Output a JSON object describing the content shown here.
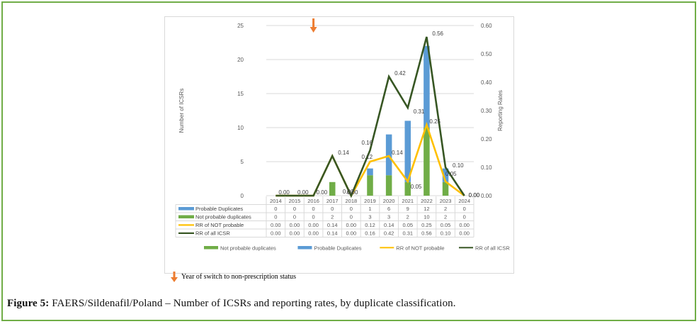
{
  "chart_data": {
    "type": "bar",
    "stacked": true,
    "title": "",
    "categories": [
      "2014",
      "2015",
      "2016",
      "2017",
      "2018",
      "2019",
      "2020",
      "2021",
      "2022",
      "2023",
      "2024"
    ],
    "series": [
      {
        "name": "Probable Duplicates",
        "kind": "bar",
        "axis": "left",
        "color": "#5b9bd5",
        "values": [
          0,
          0,
          0,
          0,
          0,
          1,
          6,
          9,
          12,
          2,
          0
        ]
      },
      {
        "name": "Not probable duplicates",
        "kind": "bar",
        "axis": "left",
        "color": "#70ad47",
        "values": [
          0,
          0,
          0,
          2,
          0,
          3,
          3,
          2,
          10,
          2,
          0
        ]
      },
      {
        "name": "RR of NOT probable",
        "kind": "line",
        "axis": "right",
        "color": "#ffc000",
        "values": [
          0.0,
          0.0,
          0.0,
          0.14,
          0.0,
          0.12,
          0.14,
          0.05,
          0.25,
          0.05,
          0.0
        ]
      },
      {
        "name": "RR of all ICSR",
        "kind": "line",
        "axis": "right",
        "color": "#375623",
        "values": [
          0.0,
          0.0,
          0.0,
          0.14,
          0.0,
          0.16,
          0.42,
          0.31,
          0.56,
          0.1,
          0.0
        ]
      }
    ],
    "data_labels": {
      "RR of NOT probable": [
        "",
        "",
        "",
        "",
        "0.00",
        "0.12",
        "0.14",
        "0.05",
        "0.25",
        "0.05",
        "0.00"
      ],
      "RR of all ICSR": [
        "0.00",
        "0.00",
        "0.00",
        "0.14",
        "0.00",
        "0.16",
        "0.42",
        "0.31",
        "0.56",
        "0.10",
        "0.00"
      ]
    },
    "ylabel": "Number of ICSRs",
    "ylim": [
      0,
      25
    ],
    "yticks": [
      0,
      5,
      10,
      15,
      20,
      25
    ],
    "y2label": "Reporting Rates",
    "y2lim": [
      0,
      0.6
    ],
    "y2ticks": [
      "0.00",
      "0.10",
      "0.20",
      "0.30",
      "0.40",
      "0.50",
      "0.60"
    ],
    "grid": true,
    "data_table": true,
    "legend_position": "bottom",
    "legend": [
      "Not probable duplicates",
      "Probable Duplicates",
      "RR of NOT probable",
      "RR of all ICSR"
    ],
    "table_rows": [
      "Probable Duplicates",
      "Not probable duplicates",
      "RR of NOT probable",
      "RR of all ICSR"
    ],
    "annotation": {
      "marker": "down-arrow",
      "year": "2016",
      "color": "#ed7d31"
    }
  },
  "note": {
    "text": "Year of switch to non-prescription status"
  },
  "caption": {
    "label": "Figure 5:",
    "text": " FAERS/Sildenafil/Poland – Number of ICSRs and reporting rates, by duplicate classification."
  }
}
